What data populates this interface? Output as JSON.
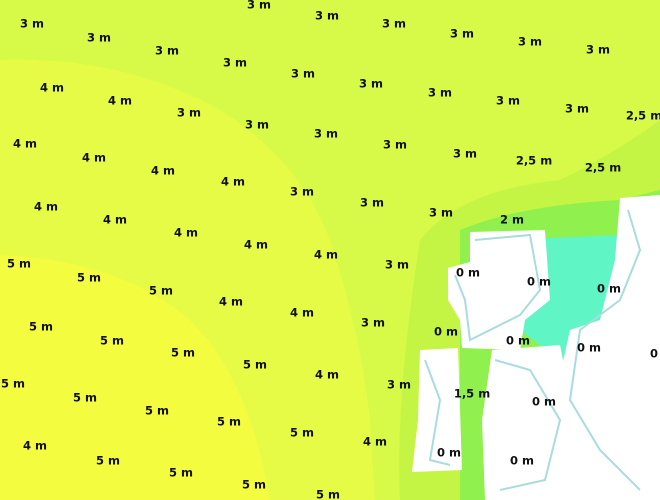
{
  "map": {
    "labels": [
      "3 m",
      "3 m",
      "3 m",
      "3 m",
      "3 m",
      "3 m",
      "3 m",
      "3 m",
      "3 m",
      "3 m",
      "3 m",
      "3 m",
      "3 m",
      "3 m",
      "3 m",
      "2,5 m",
      "4 m",
      "4 m",
      "3 m",
      "3 m",
      "3 m",
      "3 m",
      "3 m",
      "2,5 m",
      "2,5 m",
      "4 m",
      "4 m",
      "4 m",
      "4 m",
      "3 m",
      "3 m",
      "3 m",
      "2 m",
      "4 m",
      "4 m",
      "4 m",
      "4 m",
      "4 m",
      "3 m",
      "0 m",
      "0 m",
      "0 m",
      "5 m",
      "5 m",
      "5 m",
      "4 m",
      "4 m",
      "3 m",
      "0 m",
      "0 m",
      "0 m",
      "0",
      "5 m",
      "5 m",
      "5 m",
      "5 m",
      "4 m",
      "3 m",
      "1,5 m",
      "0 m",
      "5 m",
      "5 m",
      "5 m",
      "5 m",
      "5 m",
      "4 m",
      "0 m",
      "0 m",
      "4 m",
      "5 m",
      "5 m",
      "5 m",
      "5 m"
    ]
  }
}
